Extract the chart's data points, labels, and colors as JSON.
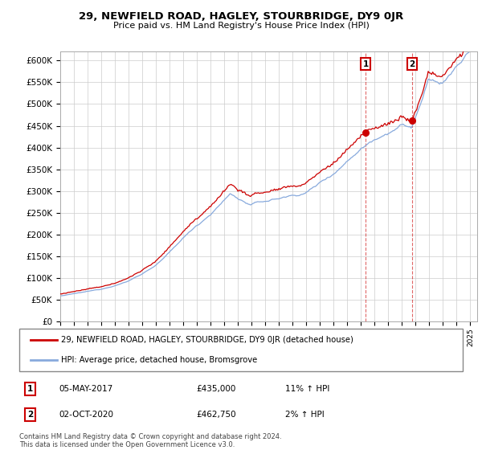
{
  "title": "29, NEWFIELD ROAD, HAGLEY, STOURBRIDGE, DY9 0JR",
  "subtitle": "Price paid vs. HM Land Registry's House Price Index (HPI)",
  "ylim": [
    0,
    620000
  ],
  "yticks": [
    0,
    50000,
    100000,
    150000,
    200000,
    250000,
    300000,
    350000,
    400000,
    450000,
    500000,
    550000,
    600000
  ],
  "background_color": "#ffffff",
  "grid_color": "#cccccc",
  "hpi_color": "#88aadd",
  "price_color": "#cc0000",
  "transaction1": {
    "date": "05-MAY-2017",
    "price": 435000,
    "label": "1",
    "hpi_pct": "11%",
    "direction": "↑"
  },
  "transaction2": {
    "date": "02-OCT-2020",
    "price": 462750,
    "label": "2",
    "hpi_pct": "2%",
    "direction": "↑"
  },
  "legend_property": "29, NEWFIELD ROAD, HAGLEY, STOURBRIDGE, DY9 0JR (detached house)",
  "legend_hpi": "HPI: Average price, detached house, Bromsgrove",
  "footnote": "Contains HM Land Registry data © Crown copyright and database right 2024.\nThis data is licensed under the Open Government Licence v3.0.",
  "x_start_year": 1995,
  "x_end_year": 2025
}
